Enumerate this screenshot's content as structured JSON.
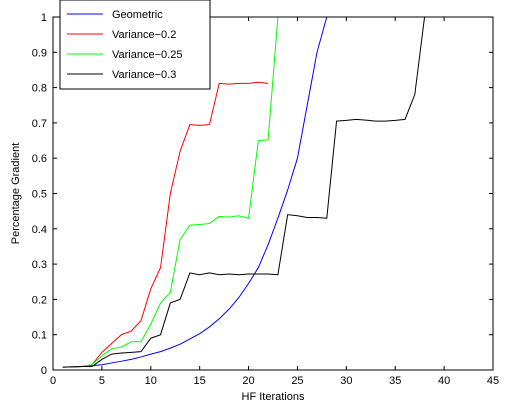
{
  "chart_data": {
    "type": "line",
    "title": "",
    "xlabel": "HF Iterations",
    "ylabel": "Percentage Gradient",
    "xlim": [
      0,
      45
    ],
    "ylim": [
      0,
      1
    ],
    "xticks": [
      0,
      5,
      10,
      15,
      20,
      25,
      30,
      35,
      40,
      45
    ],
    "yticks": [
      0,
      0.1,
      0.2,
      0.3,
      0.4,
      0.5,
      0.6,
      0.7,
      0.8,
      0.9,
      1
    ],
    "xtick_labels": [
      "0",
      "5",
      "10",
      "15",
      "20",
      "25",
      "30",
      "35",
      "40",
      "45"
    ],
    "ytick_labels": [
      "0",
      "0.1",
      "0.2",
      "0.3",
      "0.4",
      "0.5",
      "0.6",
      "0.7",
      "0.8",
      "0.9",
      "1"
    ],
    "grid": false,
    "legend_position": "top-left",
    "series": [
      {
        "name": "Geometric",
        "color": "#0000ff",
        "x": [
          1,
          2,
          3,
          4,
          5,
          6,
          7,
          8,
          9,
          10,
          11,
          12,
          13,
          14,
          15,
          16,
          17,
          18,
          19,
          20,
          21,
          22,
          23,
          24,
          25,
          26,
          27,
          28,
          29,
          30,
          31,
          32,
          33,
          34,
          35,
          36,
          37,
          38,
          39,
          40
        ],
        "y": [
          0.008,
          0.009,
          0.01,
          0.012,
          0.015,
          0.02,
          0.025,
          0.03,
          0.037,
          0.045,
          0.052,
          0.062,
          0.073,
          0.088,
          0.103,
          0.122,
          0.145,
          0.172,
          0.205,
          0.245,
          0.29,
          0.355,
          0.43,
          0.51,
          0.6,
          0.75,
          0.9,
          1.0,
          1.0,
          1.0,
          1.0,
          1.0,
          1.0,
          1.0,
          1.0,
          1.0,
          1.0,
          1.0,
          1.0,
          1.0
        ]
      },
      {
        "name": "Variance−0.2",
        "color": "#ff0000",
        "x": [
          1,
          2,
          3,
          4,
          5,
          6,
          7,
          8,
          9,
          10,
          11,
          12,
          13,
          14,
          15,
          16,
          17,
          18,
          19,
          20,
          21,
          22
        ],
        "y": [
          0.008,
          0.009,
          0.01,
          0.015,
          0.05,
          0.075,
          0.1,
          0.11,
          0.14,
          0.23,
          0.29,
          0.5,
          0.62,
          0.695,
          0.693,
          0.695,
          0.812,
          0.81,
          0.812,
          0.812,
          0.815,
          0.812
        ]
      },
      {
        "name": "Variance−0.25",
        "color": "#00ff00",
        "x": [
          1,
          2,
          3,
          4,
          5,
          6,
          7,
          8,
          9,
          10,
          11,
          12,
          13,
          14,
          15,
          16,
          17,
          18,
          19,
          20,
          21,
          22,
          23,
          24,
          25,
          26,
          27,
          28,
          29,
          30,
          31,
          32,
          33,
          34,
          35,
          36,
          37,
          38,
          39,
          40
        ],
        "y": [
          0.008,
          0.009,
          0.01,
          0.015,
          0.04,
          0.06,
          0.065,
          0.08,
          0.08,
          0.13,
          0.19,
          0.22,
          0.37,
          0.41,
          0.412,
          0.415,
          0.435,
          0.433,
          0.437,
          0.43,
          0.65,
          0.652,
          1.0,
          1.0,
          1.0,
          1.0,
          1.0,
          1.0,
          1.0,
          1.0,
          1.0,
          1.0,
          1.0,
          1.0,
          1.0,
          1.0,
          1.0,
          1.0,
          1.0,
          1.0
        ]
      },
      {
        "name": "Variance−0.3",
        "color": "#000000",
        "x": [
          1,
          2,
          3,
          4,
          5,
          6,
          7,
          8,
          9,
          10,
          11,
          12,
          13,
          14,
          15,
          16,
          17,
          18,
          19,
          20,
          21,
          22,
          23,
          24,
          25,
          26,
          27,
          28,
          29,
          30,
          31,
          32,
          33,
          34,
          35,
          36,
          37,
          38,
          39,
          40
        ],
        "y": [
          0.008,
          0.009,
          0.01,
          0.01,
          0.03,
          0.045,
          0.048,
          0.05,
          0.052,
          0.09,
          0.1,
          0.19,
          0.2,
          0.275,
          0.27,
          0.275,
          0.27,
          0.272,
          0.27,
          0.272,
          0.272,
          0.272,
          0.27,
          0.44,
          0.437,
          0.432,
          0.432,
          0.43,
          0.705,
          0.707,
          0.71,
          0.708,
          0.705,
          0.705,
          0.707,
          0.71,
          0.78,
          1.0,
          1.0,
          1.0
        ]
      }
    ]
  }
}
